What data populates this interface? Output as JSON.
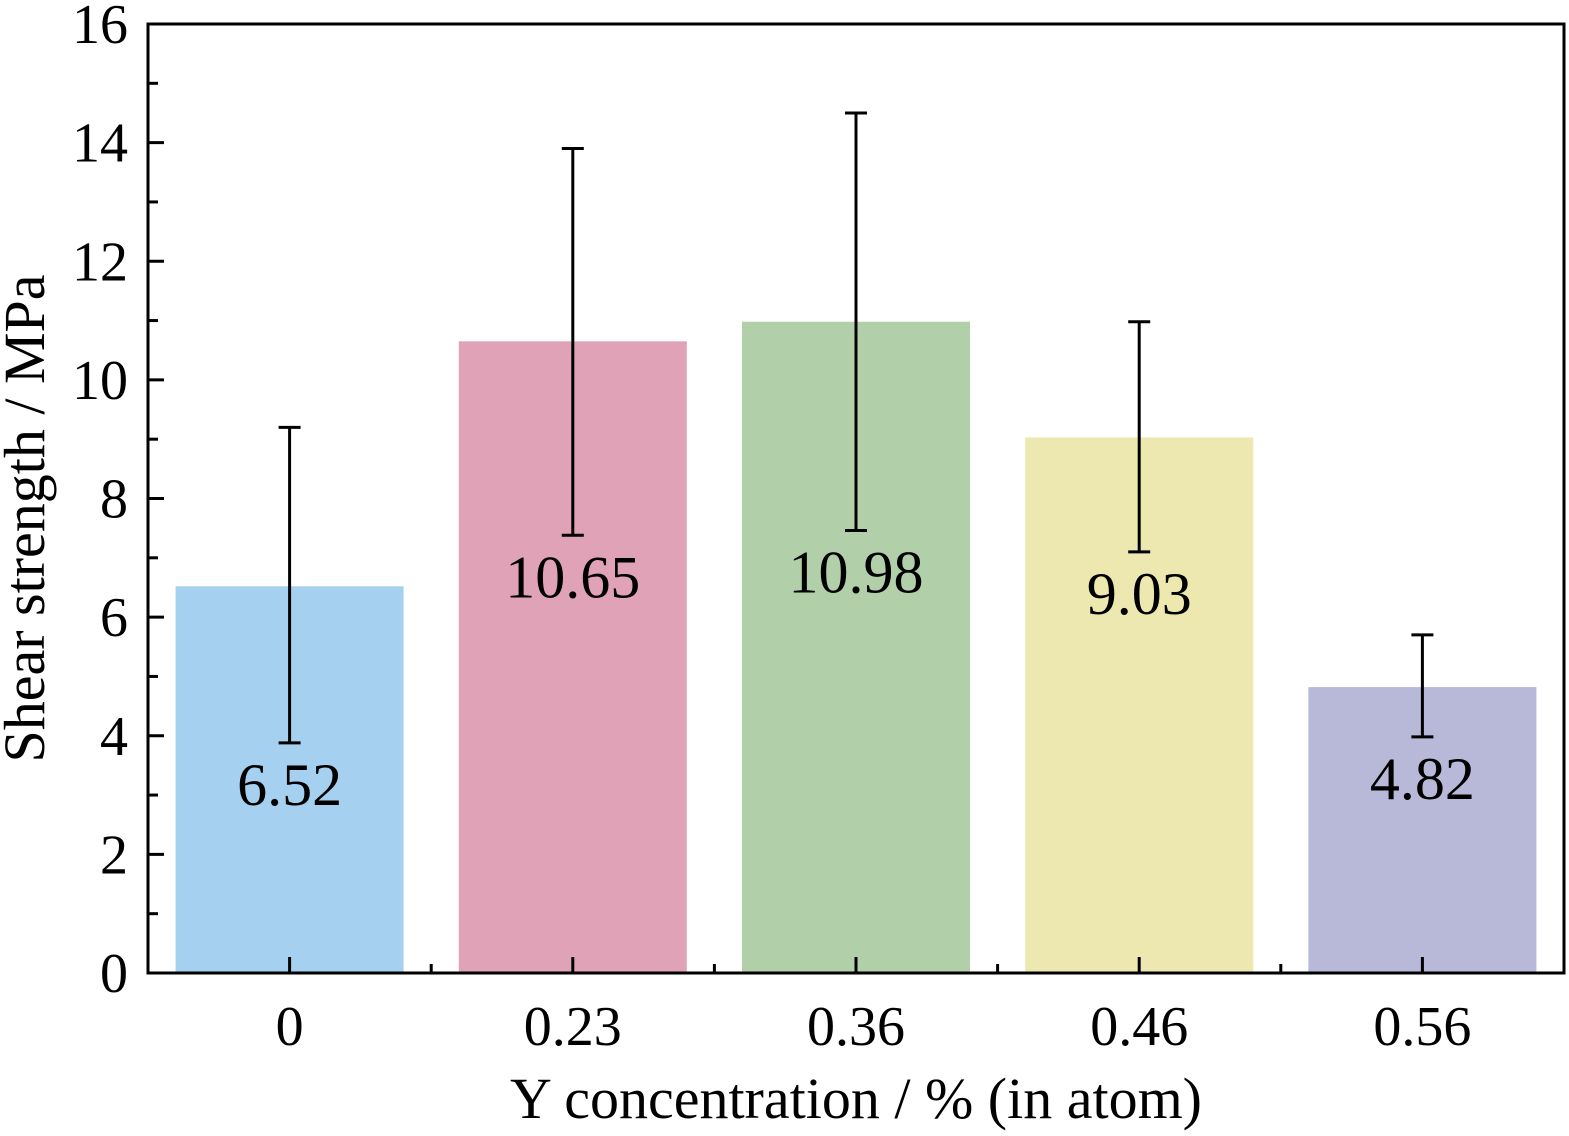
{
  "chart_data": {
    "type": "bar",
    "categories": [
      "0",
      "0.23",
      "0.36",
      "0.46",
      "0.56"
    ],
    "values": [
      6.52,
      10.65,
      10.98,
      9.03,
      4.82
    ],
    "error_low": [
      3.88,
      7.38,
      7.46,
      7.1,
      3.98
    ],
    "error_high": [
      9.2,
      13.9,
      14.5,
      10.98,
      5.7
    ],
    "data_labels": [
      "6.52",
      "10.65",
      "10.98",
      "9.03",
      "4.82"
    ],
    "colors": [
      "#a5d0ef",
      "#e0a2b6",
      "#b1cfa9",
      "#ede8b0",
      "#b8b8d8"
    ],
    "xlabel": "Y concentration / % (in atom)",
    "ylabel": "Shear strength / MPa",
    "ylim": [
      0,
      16
    ],
    "yticks": [
      "0",
      "2",
      "4",
      "6",
      "8",
      "10",
      "12",
      "14",
      "16"
    ],
    "grid": false,
    "legend": "none"
  }
}
